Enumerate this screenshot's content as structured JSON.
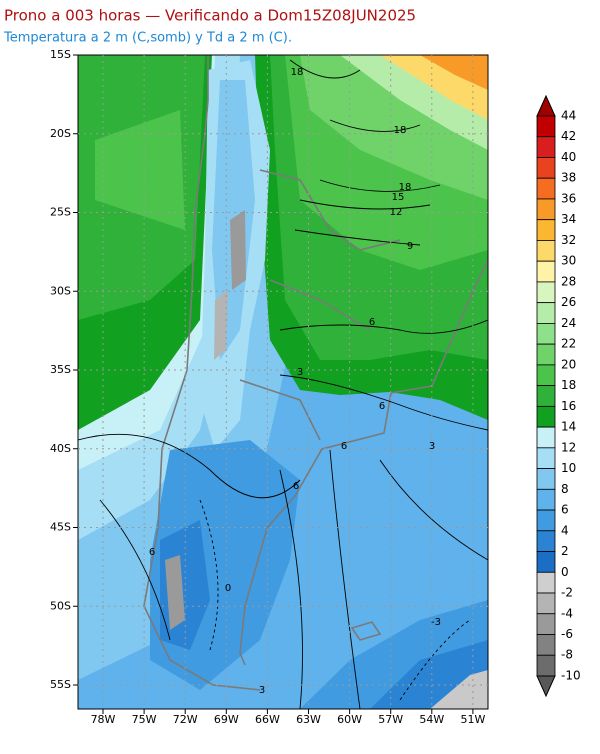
{
  "header": {
    "title": "Prono a 003 horas — Verificando a Dom15Z08JUN2025",
    "subtitle": "Temperatura a 2 m (C,somb) y Td a 2 m (C)."
  },
  "map": {
    "lat_labels": [
      "15S",
      "20S",
      "25S",
      "30S",
      "35S",
      "40S",
      "45S",
      "50S",
      "55S"
    ],
    "lon_labels": [
      "78W",
      "75W",
      "72W",
      "69W",
      "66W",
      "63W",
      "60W",
      "57W",
      "54W",
      "51W"
    ],
    "contour_labels": [
      18,
      18,
      18,
      15,
      12,
      9,
      6,
      6,
      3,
      6,
      3,
      6,
      6,
      0,
      -3,
      3
    ]
  },
  "colorbar": {
    "ticks": [
      44,
      42,
      40,
      38,
      36,
      34,
      32,
      30,
      28,
      26,
      24,
      22,
      20,
      18,
      16,
      14,
      12,
      10,
      8,
      6,
      4,
      2,
      0,
      -2,
      -4,
      -6,
      -8,
      -10
    ],
    "colors": [
      "#a00000",
      "#c00000",
      "#d81e1e",
      "#e8431e",
      "#f46d20",
      "#f89a28",
      "#fbb732",
      "#fdd96a",
      "#fff3a8",
      "#d8f5c0",
      "#b5ecaa",
      "#8fe08a",
      "#6fd36a",
      "#4cc34b",
      "#2fb13a",
      "#12a020",
      "#c8f0f7",
      "#a6def5",
      "#80c8f0",
      "#5fb2eb",
      "#409be0",
      "#2a84d3",
      "#1a6fc4",
      "#cfcfcf",
      "#b4b4b4",
      "#9a9a9a",
      "#828282",
      "#6c6c6c",
      "#585858"
    ]
  }
}
